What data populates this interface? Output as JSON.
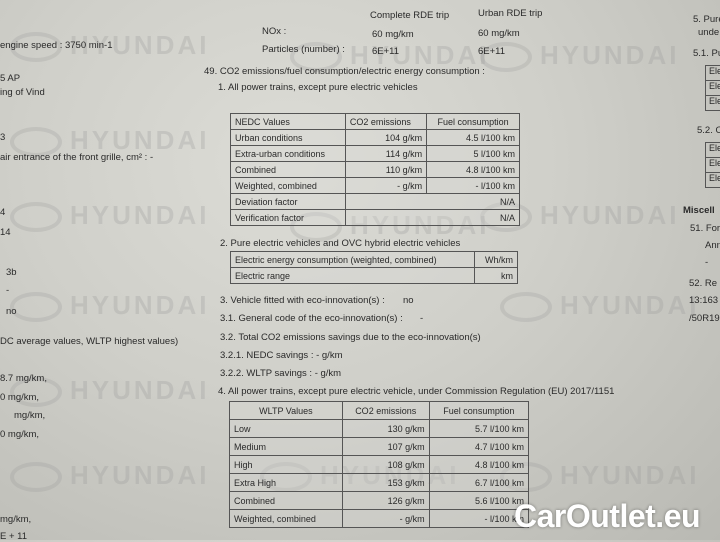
{
  "watermark": "HYUNDAI",
  "left": [
    "engine speed : 3750  min-1",
    "5 AP",
    "ing of Vind",
    "3",
    "air entrance of the front grille, cm² :  -",
    "4",
    "14",
    "3b",
    "-",
    "no",
    "DC average values, WLTP highest values)",
    "8.7   mg/km,",
    "0    mg/km,",
    "mg/km,",
    "0 mg/km,",
    "mg/km,",
    "E + 11"
  ],
  "rde": {
    "col1": "Complete RDE trip",
    "col2": "Urban RDE trip",
    "nox_label": "NOx :",
    "nox1": "60 mg/km",
    "nox2": "60 mg/km",
    "pn_label": "Particles (number) :",
    "pn1": "6E+11",
    "pn2": "6E+11"
  },
  "s49": {
    "title": "49. CO2 emissions/fuel consumption/electric energy consumption :",
    "s1": "1. All power trains, except pure electric vehicles"
  },
  "nedc": {
    "header": [
      "NEDC Values",
      "CO2 emissions",
      "Fuel consumption"
    ],
    "rows": [
      [
        "Urban conditions",
        "104 g/km",
        "4.5 l/100 km"
      ],
      [
        "Extra-urban conditions",
        "114 g/km",
        "5 l/100 km"
      ],
      [
        "Combined",
        "110 g/km",
        "4.8 l/100 km"
      ],
      [
        "Weighted, combined",
        "- g/km",
        "- l/100 km"
      ]
    ],
    "span_rows": [
      [
        "Deviation factor",
        "N/A"
      ],
      [
        "Verification factor",
        "N/A"
      ]
    ]
  },
  "s2": {
    "title": "2. Pure electric vehicles and OVC hybrid electric vehicles",
    "rows": [
      [
        "Electric energy consumption (weighted, combined)",
        "Wh/km"
      ],
      [
        "Electric range",
        "km"
      ]
    ]
  },
  "s3": [
    "3. Vehicle fitted with eco-innovation(s) :",
    "no",
    "3.1. General code of the eco-innovation(s) :",
    "-",
    "3.2. Total CO2 emissions savings due to the eco-innovation(s)",
    "3.2.1. NEDC savings :  - g/km",
    "3.2.2. WLTP savings :  - g/km"
  ],
  "s4": {
    "title": "4. All power trains, except pure electric vehicle, under Commission Regulation (EU) 2017/1151"
  },
  "wltp": {
    "header": [
      "WLTP Values",
      "CO2 emissions",
      "Fuel consumption"
    ],
    "rows": [
      [
        "Low",
        "130 g/km",
        "5.7 l/100 km"
      ],
      [
        "Medium",
        "107 g/km",
        "4.7 l/100 km"
      ],
      [
        "High",
        "108 g/km",
        "4.8 l/100 km"
      ],
      [
        "Extra High",
        "153 g/km",
        "6.7 l/100 km"
      ],
      [
        "Combined",
        "126 g/km",
        "5.6 l/100 km"
      ],
      [
        "Weighted, combined",
        "- g/km",
        "- l/100 km"
      ]
    ]
  },
  "right": {
    "lines": [
      "5. Pure",
      "unde",
      "5.1. Pu",
      "5.2. O",
      "Miscell",
      "51. For",
      "Ann",
      "-",
      "52. Re",
      "13:163",
      "/50R19"
    ],
    "box1": [
      "Elec",
      "Elec",
      "Elec"
    ],
    "box2": [
      "Elec",
      "Elec",
      "Elec"
    ]
  },
  "brand": "CarOutlet.eu"
}
